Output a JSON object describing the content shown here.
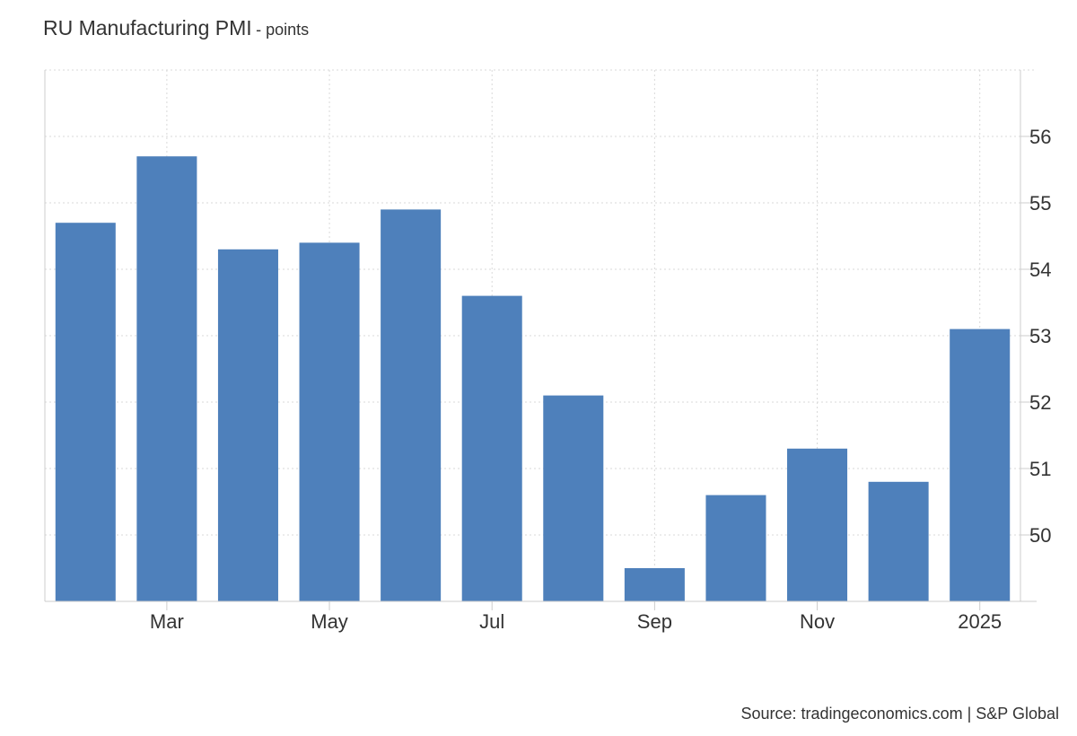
{
  "chart_title": "RU Manufacturing PMI",
  "chart_subtitle": "- points",
  "source": "Source: tradingeconomics.com | S&P Global",
  "colors": {
    "bar": "#4e80bb",
    "grid": "#d9d9d9",
    "axis": "#cccccc",
    "text": "#333333"
  },
  "chart_data": {
    "type": "bar",
    "title": "RU Manufacturing PMI",
    "subtitle": "- points",
    "xlabel": "",
    "ylabel": "",
    "categories": [
      "2024-02",
      "2024-03",
      "2024-04",
      "2024-05",
      "2024-06",
      "2024-07",
      "2024-08",
      "2024-09",
      "2024-10",
      "2024-11",
      "2024-12",
      "2025-01"
    ],
    "values": [
      54.7,
      55.7,
      54.3,
      54.4,
      54.9,
      53.6,
      52.1,
      49.5,
      50.6,
      51.3,
      50.8,
      53.1
    ],
    "x_tick_labels": [
      {
        "label": "Mar",
        "category": "2024-03"
      },
      {
        "label": "May",
        "category": "2024-05"
      },
      {
        "label": "Jul",
        "category": "2024-07"
      },
      {
        "label": "Sep",
        "category": "2024-09"
      },
      {
        "label": "Nov",
        "category": "2024-11"
      },
      {
        "label": "2025",
        "category": "2025-01"
      }
    ],
    "y_ticks": [
      50,
      51,
      52,
      53,
      54,
      55,
      56
    ],
    "ylim": [
      49.0,
      57.0
    ],
    "y_axis_side": "right",
    "grid": true
  }
}
